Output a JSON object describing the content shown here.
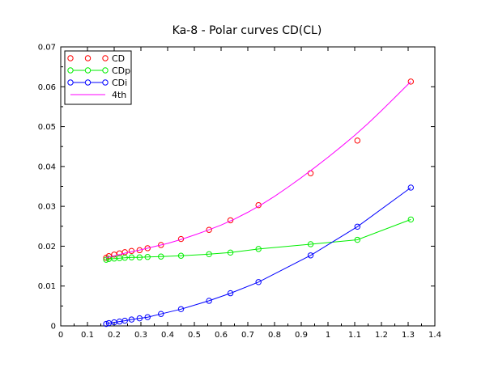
{
  "chart_data": {
    "type": "line",
    "title": "Ka-8 - Polar curves CD(CL)",
    "xlabel": "",
    "ylabel": "",
    "xlim": [
      0,
      1.4
    ],
    "ylim": [
      0,
      0.07
    ],
    "x_ticks": [
      0,
      0.1,
      0.2,
      0.3,
      0.4,
      0.5,
      0.6,
      0.7,
      0.8,
      0.9,
      1.0,
      1.1,
      1.2,
      1.3,
      1.4
    ],
    "x_tick_labels": [
      "0",
      "0.1",
      "0.2",
      "0.3",
      "0.4",
      "0.5",
      "0.6",
      "0.7",
      "0.8",
      "0.9",
      "1",
      "1.1",
      "1.2",
      "1.3",
      "1.4"
    ],
    "y_ticks": [
      0,
      0.01,
      0.02,
      0.03,
      0.04,
      0.05,
      0.06,
      0.07
    ],
    "y_tick_labels": [
      "0",
      "0.01",
      "0.02",
      "0.03",
      "0.04",
      "0.05",
      "0.06",
      "0.07"
    ],
    "grid": false,
    "legend_position": "top-left",
    "series": [
      {
        "name": "CD",
        "color": "#ff0000",
        "style": "markers",
        "x": [
          0.17,
          0.18,
          0.2,
          0.22,
          0.24,
          0.265,
          0.295,
          0.325,
          0.375,
          0.45,
          0.555,
          0.635,
          0.74,
          0.935,
          1.11,
          1.31
        ],
        "y": [
          0.0171,
          0.0175,
          0.0179,
          0.0182,
          0.0185,
          0.0188,
          0.019,
          0.0195,
          0.0203,
          0.0218,
          0.0241,
          0.0265,
          0.0303,
          0.0383,
          0.0465,
          0.0613
        ]
      },
      {
        "name": "CDp",
        "color": "#00ee00",
        "style": "line-markers",
        "x": [
          0.17,
          0.18,
          0.2,
          0.22,
          0.24,
          0.265,
          0.295,
          0.325,
          0.375,
          0.45,
          0.555,
          0.635,
          0.74,
          0.935,
          1.11,
          1.31
        ],
        "y": [
          0.0166,
          0.0168,
          0.0169,
          0.017,
          0.0171,
          0.0172,
          0.0172,
          0.0173,
          0.0174,
          0.0176,
          0.018,
          0.0184,
          0.0193,
          0.0205,
          0.0216,
          0.0267
        ]
      },
      {
        "name": "CDi",
        "color": "#0000ff",
        "style": "line-markers",
        "x": [
          0.17,
          0.18,
          0.2,
          0.22,
          0.24,
          0.265,
          0.295,
          0.325,
          0.375,
          0.45,
          0.555,
          0.635,
          0.74,
          0.935,
          1.11,
          1.31
        ],
        "y": [
          0.0005,
          0.0007,
          0.0009,
          0.0011,
          0.0013,
          0.0016,
          0.0019,
          0.0022,
          0.003,
          0.0042,
          0.0063,
          0.0082,
          0.011,
          0.0177,
          0.0249,
          0.0347
        ]
      },
      {
        "name": "4th",
        "color": "#ff00ff",
        "style": "line",
        "x": [
          0.17,
          0.2,
          0.25,
          0.3,
          0.35,
          0.4,
          0.45,
          0.5,
          0.55,
          0.6,
          0.65,
          0.7,
          0.75,
          0.8,
          0.85,
          0.9,
          0.95,
          1.0,
          1.05,
          1.1,
          1.15,
          1.2,
          1.25,
          1.31
        ],
        "y": [
          0.0171,
          0.0176,
          0.0184,
          0.0191,
          0.0199,
          0.0207,
          0.0217,
          0.0228,
          0.024,
          0.0253,
          0.0268,
          0.0285,
          0.0304,
          0.0325,
          0.0348,
          0.0372,
          0.0397,
          0.0423,
          0.045,
          0.0478,
          0.0508,
          0.054,
          0.0573,
          0.0613
        ]
      }
    ]
  }
}
